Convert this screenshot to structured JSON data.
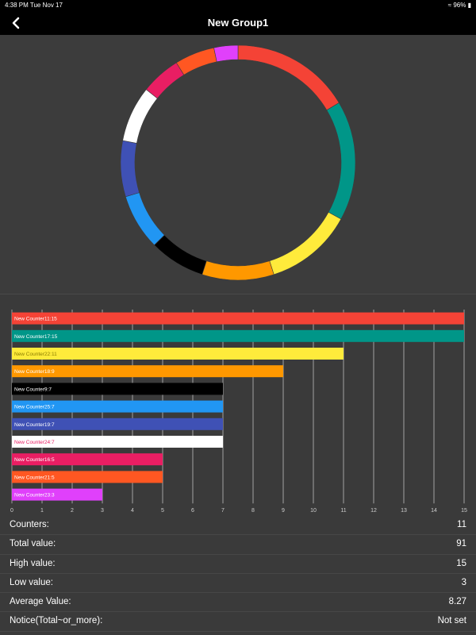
{
  "status": {
    "time": "4:38 PM",
    "date": "Tue Nov 17",
    "battery": "96%"
  },
  "nav": {
    "title": "New Group1"
  },
  "chart_data": {
    "type": "bar",
    "orientation": "horizontal",
    "title": "",
    "xlim": [
      0,
      15
    ],
    "x_ticks": [
      "0",
      "1",
      "2",
      "3",
      "4",
      "5",
      "6",
      "7",
      "8",
      "9",
      "10",
      "11",
      "12",
      "13",
      "14",
      "15"
    ],
    "grid": true,
    "series": [
      {
        "label": "New Counter11:15",
        "value": 15,
        "color": "#f44336",
        "text_color": "#ffffff"
      },
      {
        "label": "New Counter17:15",
        "value": 15,
        "color": "#009688",
        "text_color": "#ffffff"
      },
      {
        "label": "New Counter22:11",
        "value": 11,
        "color": "#ffeb3b",
        "text_color": "#8a7d00"
      },
      {
        "label": "New Counter18:9",
        "value": 9,
        "color": "#ff9800",
        "text_color": "#ffffff"
      },
      {
        "label": "New Counter9:7",
        "value": 7,
        "color": "#000000",
        "text_color": "#ffffff"
      },
      {
        "label": "New Counter25:7",
        "value": 7,
        "color": "#2196f3",
        "text_color": "#ffffff"
      },
      {
        "label": "New Counter19:7",
        "value": 7,
        "color": "#3f51b5",
        "text_color": "#ffffff"
      },
      {
        "label": "New Counter24:7",
        "value": 7,
        "color": "#ffffff",
        "text_color": "#e91e63"
      },
      {
        "label": "New Counter16:5",
        "value": 5,
        "color": "#e91e63",
        "text_color": "#ffffff"
      },
      {
        "label": "New Counter21:5",
        "value": 5,
        "color": "#ff5722",
        "text_color": "#ffffff"
      },
      {
        "label": "New Counter23:3",
        "value": 3,
        "color": "#e040fb",
        "text_color": "#ffffff"
      }
    ],
    "donut": {
      "type": "pie",
      "values": [
        15,
        15,
        11,
        9,
        7,
        7,
        7,
        7,
        5,
        5,
        3
      ],
      "colors": [
        "#f44336",
        "#009688",
        "#ffeb3b",
        "#ff9800",
        "#000000",
        "#2196f3",
        "#3f51b5",
        "#ffffff",
        "#e91e63",
        "#ff5722",
        "#e040fb"
      ]
    }
  },
  "stats": [
    {
      "label": "Counters:",
      "value": "11"
    },
    {
      "label": "Total value:",
      "value": "91"
    },
    {
      "label": "High value:",
      "value": "15"
    },
    {
      "label": "Low value:",
      "value": "3"
    },
    {
      "label": "Average Value:",
      "value": "8.27"
    },
    {
      "label": "Notice(Total~or_more):",
      "value": "Not set"
    }
  ]
}
